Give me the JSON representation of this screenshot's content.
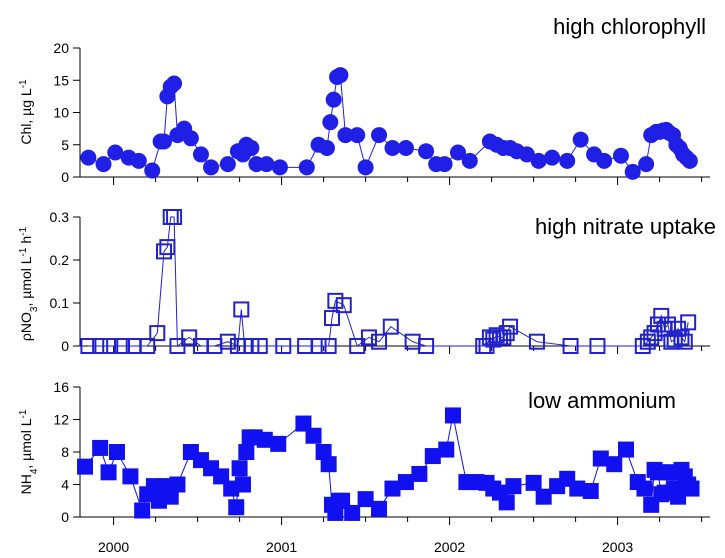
{
  "colors": {
    "chl": "#1f1fe6",
    "no3": "#2222cc",
    "nh4": "#1010f0"
  },
  "chart_data": [
    {
      "type": "scatter",
      "panel": "top",
      "annotation": "high chlorophyll",
      "ylabel": "Chl, µg L",
      "ylabel_sup": "-1",
      "ylim": [
        0,
        20
      ],
      "yticks": [
        0,
        5,
        10,
        15,
        20
      ],
      "xlim": [
        1999.8,
        2003.55
      ],
      "xticks": [
        2000,
        2001,
        2002,
        2003
      ],
      "series": [
        {
          "marker": "circle",
          "connected": true,
          "x": [
            1999.85,
            1999.94,
            2000.01,
            2000.09,
            2000.15,
            2000.23,
            2000.28,
            2000.3,
            2000.32,
            2000.34,
            2000.36,
            2000.38,
            2000.42,
            2000.46,
            2000.52,
            2000.58,
            2000.68,
            2000.74,
            2000.77,
            2000.79,
            2000.82,
            2000.85,
            2000.91,
            2000.99,
            2001.15,
            2001.22,
            2001.27,
            2001.29,
            2001.31,
            2001.33,
            2001.35,
            2001.38,
            2001.45,
            2001.5,
            2001.58,
            2001.66,
            2001.74,
            2001.86,
            2001.92,
            2001.97,
            2002.05,
            2002.12,
            2002.24,
            2002.28,
            2002.32,
            2002.36,
            2002.4,
            2002.46,
            2002.53,
            2002.61,
            2002.7,
            2002.78,
            2002.86,
            2002.92,
            2003.02,
            2003.09,
            2003.17,
            2003.2,
            2003.23,
            2003.25,
            2003.27,
            2003.29,
            2003.31,
            2003.33,
            2003.35,
            2003.37,
            2003.39,
            2003.41,
            2003.43
          ],
          "y": [
            3,
            2,
            3.8,
            3,
            2.5,
            1,
            5.5,
            5.5,
            12.5,
            14,
            14.5,
            6.5,
            7.5,
            6,
            3.5,
            1.5,
            2,
            4,
            3.5,
            5,
            4.5,
            2,
            2,
            1.5,
            1.5,
            5,
            4.5,
            8.5,
            12,
            15.5,
            15.8,
            6.5,
            6.5,
            1.5,
            6.5,
            4.5,
            4.5,
            4,
            2,
            2,
            3.8,
            2.5,
            5.5,
            5,
            4.5,
            4.5,
            4,
            3.5,
            2.5,
            3,
            2.5,
            5.8,
            3.5,
            2.5,
            3.3,
            0.8,
            2,
            6.5,
            7,
            7,
            7.2,
            7.3,
            6.8,
            6.5,
            5,
            4.5,
            3.5,
            3,
            2.5
          ]
        }
      ]
    },
    {
      "type": "scatter",
      "panel": "middle",
      "annotation": "high nitrate uptake",
      "ylabel": "ρNO",
      "ylabel_sub": "3",
      "ylabel_mid": ", µmol L",
      "ylabel_sup1": "-1",
      "ylabel_mid2": " h",
      "ylabel_sup2": "-1",
      "ylim": [
        0,
        0.3
      ],
      "yticks": [
        0,
        0.1,
        0.2,
        0.3
      ],
      "ytick_labels": [
        "0",
        "0.1",
        "0.2",
        "0.3"
      ],
      "xlim": [
        1999.8,
        2003.55
      ],
      "xticks": [
        2000,
        2001,
        2002,
        2003
      ],
      "series": [
        {
          "marker": "square",
          "connected": true,
          "x": [
            1999.85,
            1999.92,
            1999.98,
            2000.05,
            2000.12,
            2000.2,
            2000.26,
            2000.3,
            2000.32,
            2000.34,
            2000.36,
            2000.38,
            2000.45,
            2000.52,
            2000.6,
            2000.68,
            2000.74,
            2000.76,
            2000.78,
            2000.82,
            2000.87,
            2001.01,
            2001.14,
            2001.22,
            2001.28,
            2001.3,
            2001.32,
            2001.37,
            2001.45,
            2001.52,
            2001.58,
            2001.65,
            2001.78,
            2001.86,
            2002.2,
            2002.22,
            2002.24,
            2002.26,
            2002.28,
            2002.3,
            2002.32,
            2002.34,
            2002.36,
            2002.52,
            2002.72,
            2002.88,
            2003.15,
            2003.18,
            2003.2,
            2003.22,
            2003.24,
            2003.26,
            2003.28,
            2003.3,
            2003.32,
            2003.34,
            2003.36,
            2003.38,
            2003.4,
            2003.42
          ],
          "y": [
            0,
            0,
            0,
            0,
            0,
            0,
            0.03,
            0.22,
            0.23,
            0.3,
            0.3,
            0,
            0.02,
            0,
            0,
            0.01,
            0,
            0.085,
            0,
            0,
            0,
            0,
            0,
            0,
            0,
            0.065,
            0.105,
            0.095,
            0,
            0.02,
            0.01,
            0.045,
            0.01,
            0,
            0,
            0,
            0.02,
            0.015,
            0.025,
            0.02,
            0.02,
            0.03,
            0.045,
            0.01,
            0,
            0,
            0,
            0.01,
            0.02,
            0.03,
            0.05,
            0.07,
            0.04,
            0.05,
            0.01,
            0.015,
            0.04,
            0.02,
            0.01,
            0.055
          ]
        }
      ]
    },
    {
      "type": "scatter",
      "panel": "bottom",
      "annotation": "low ammonium",
      "ylabel": "NH",
      "ylabel_sub": "4",
      "ylabel_mid": ", µmol L",
      "ylabel_sup": "-1",
      "ylim": [
        0,
        16
      ],
      "yticks": [
        0,
        4,
        8,
        12,
        16
      ],
      "xlim": [
        1999.8,
        2003.55
      ],
      "xticks": [
        2000,
        2001,
        2002,
        2003
      ],
      "xtick_labels": [
        "2000",
        "2001",
        "2002",
        "2003"
      ],
      "series": [
        {
          "marker": "square",
          "connected": true,
          "x": [
            1999.83,
            1999.92,
            1999.97,
            2000.02,
            2000.1,
            2000.17,
            2000.2,
            2000.24,
            2000.27,
            2000.31,
            2000.34,
            2000.38,
            2000.46,
            2000.52,
            2000.58,
            2000.64,
            2000.7,
            2000.73,
            2000.75,
            2000.77,
            2000.79,
            2000.81,
            2000.84,
            2000.9,
            2000.98,
            2001.13,
            2001.19,
            2001.25,
            2001.28,
            2001.3,
            2001.32,
            2001.34,
            2001.36,
            2001.42,
            2001.5,
            2001.58,
            2001.66,
            2001.74,
            2001.82,
            2001.9,
            2001.98,
            2002.02,
            2002.1,
            2002.16,
            2002.22,
            2002.26,
            2002.3,
            2002.34,
            2002.38,
            2002.5,
            2002.56,
            2002.64,
            2002.7,
            2002.76,
            2002.84,
            2002.9,
            2002.98,
            2003.05,
            2003.12,
            2003.16,
            2003.2,
            2003.22,
            2003.24,
            2003.26,
            2003.28,
            2003.3,
            2003.32,
            2003.34,
            2003.36,
            2003.38,
            2003.4,
            2003.42,
            2003.44
          ],
          "y": [
            6.2,
            8.5,
            5.5,
            8,
            5,
            0.8,
            2.8,
            3.8,
            2,
            3.8,
            2.5,
            4,
            8,
            7,
            6,
            5,
            3.5,
            1.2,
            6,
            4,
            8,
            9.8,
            9.8,
            9.5,
            9,
            11.5,
            10,
            8,
            6.5,
            1.5,
            0.5,
            2,
            2,
            0.5,
            2.2,
            1,
            3.5,
            4.3,
            5.3,
            7.5,
            8.3,
            12.5,
            4.3,
            4.3,
            4.2,
            3.5,
            3,
            1.8,
            3.8,
            4.2,
            2.5,
            3.8,
            4.7,
            3.5,
            3.2,
            7.2,
            6.5,
            8.3,
            4.3,
            3.5,
            1.5,
            5.8,
            5.5,
            2.8,
            3,
            5.5,
            5.5,
            3.5,
            2.5,
            5.8,
            5,
            4,
            3.5
          ]
        }
      ]
    }
  ]
}
